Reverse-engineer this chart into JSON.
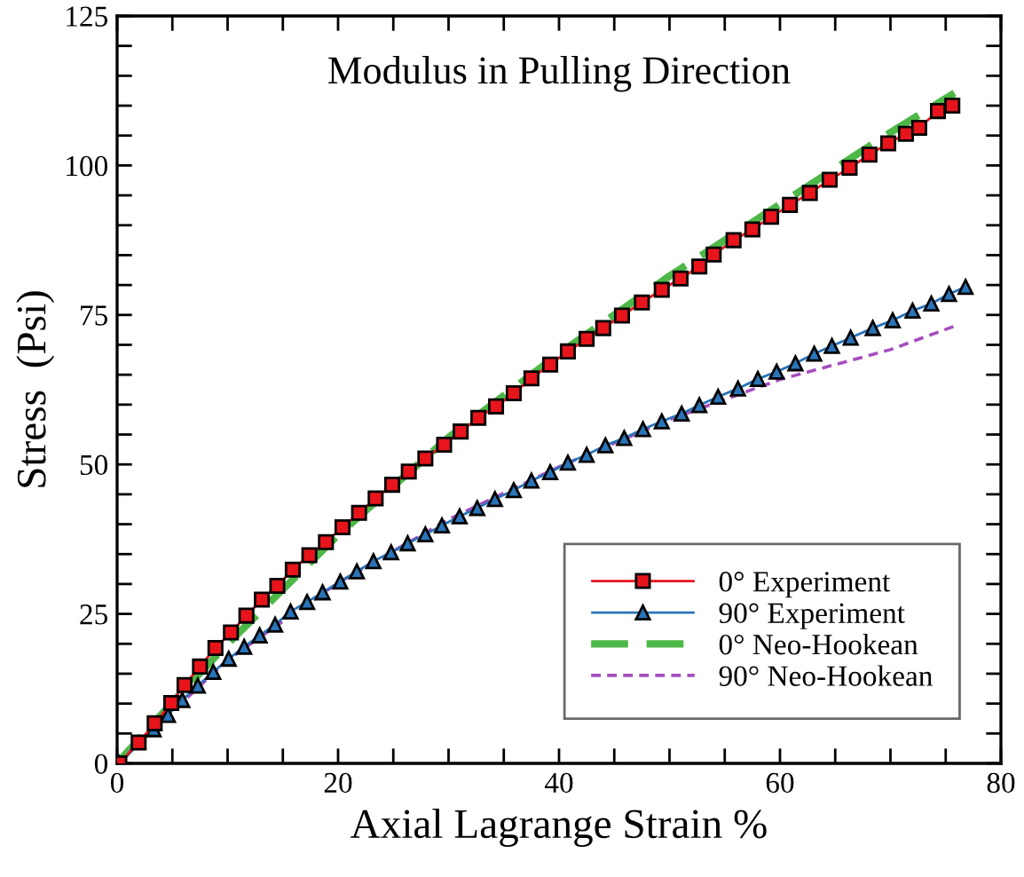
{
  "chart_data": {
    "type": "line",
    "title": "Modulus in Pulling Direction",
    "xlabel": "Axial Lagrange Strain %",
    "ylabel": "Stress  (Psi)",
    "xlim": [
      0,
      80
    ],
    "ylim": [
      0,
      125
    ],
    "xticks": [
      0,
      {
        "value": 5,
        "label": null
      },
      {
        "value": 10,
        "label": null
      },
      {
        "value": 15,
        "label": null
      },
      20,
      {
        "value": 25,
        "label": null
      },
      {
        "value": 30,
        "label": null
      },
      {
        "value": 35,
        "label": null
      },
      40,
      {
        "value": 45,
        "label": null
      },
      {
        "value": 50,
        "label": null
      },
      {
        "value": 55,
        "label": null
      },
      60,
      {
        "value": 65,
        "label": null
      },
      {
        "value": 70,
        "label": null
      },
      {
        "value": 75,
        "label": null
      },
      80
    ],
    "yticks": [
      0,
      {
        "value": 5,
        "label": null
      },
      {
        "value": 10,
        "label": null
      },
      {
        "value": 15,
        "label": null
      },
      {
        "value": 20,
        "label": null
      },
      25,
      {
        "value": 30,
        "label": null
      },
      {
        "value": 35,
        "label": null
      },
      {
        "value": 40,
        "label": null
      },
      {
        "value": 45,
        "label": null
      },
      50,
      {
        "value": 55,
        "label": null
      },
      {
        "value": 60,
        "label": null
      },
      {
        "value": 65,
        "label": null
      },
      {
        "value": 70,
        "label": null
      },
      75,
      {
        "value": 80,
        "label": null
      },
      {
        "value": 85,
        "label": null
      },
      {
        "value": 90,
        "label": null
      },
      {
        "value": 95,
        "label": null
      },
      100,
      {
        "value": 105,
        "label": null
      },
      {
        "value": 110,
        "label": null
      },
      {
        "value": 115,
        "label": null
      },
      {
        "value": 120,
        "label": null
      },
      125
    ],
    "grid": false,
    "legend": "bottom right",
    "series": [
      {
        "name": "0° Experiment",
        "color": "#e8141c",
        "marker": "square",
        "line_style": "solid",
        "x": [
          0.2,
          1.95,
          3.4,
          4.9,
          6.1,
          7.5,
          8.9,
          10.3,
          11.7,
          13.1,
          14.5,
          15.9,
          17.4,
          18.9,
          20.4,
          21.9,
          23.4,
          24.9,
          26.4,
          27.9,
          29.6,
          31.1,
          32.7,
          34.3,
          35.9,
          37.5,
          39.2,
          40.8,
          42.5,
          44.0,
          45.7,
          47.5,
          49.3,
          51.0,
          52.7,
          54.0,
          55.8,
          57.5,
          59.2,
          60.9,
          62.7,
          64.5,
          66.3,
          68.1,
          69.8,
          71.4,
          72.6,
          74.3,
          75.6
        ],
        "values": [
          0,
          3.5,
          6.7,
          10.1,
          13.1,
          16.2,
          19.3,
          21.9,
          24.7,
          27.4,
          29.7,
          32.4,
          34.8,
          37.0,
          39.5,
          41.9,
          44.3,
          46.6,
          48.8,
          51.0,
          53.3,
          55.5,
          57.8,
          59.7,
          61.9,
          64.4,
          66.7,
          68.9,
          71.0,
          72.8,
          74.9,
          77.1,
          79.2,
          81.1,
          83.1,
          85.1,
          87.5,
          89.3,
          91.4,
          93.4,
          95.4,
          97.6,
          99.6,
          101.8,
          103.7,
          105.3,
          106.3,
          109.1,
          110.0
        ]
      },
      {
        "name": "90° Experiment",
        "color": "#2a74b8",
        "marker": "triangle",
        "line_style": "solid",
        "x": [
          0.2,
          3.3,
          4.6,
          5.9,
          7.3,
          8.7,
          10.1,
          11.5,
          12.9,
          14.3,
          15.7,
          17.2,
          18.6,
          20.2,
          21.7,
          23.2,
          24.8,
          26.3,
          27.9,
          29.4,
          31.0,
          32.6,
          34.2,
          35.9,
          37.5,
          39.2,
          40.8,
          42.5,
          44.2,
          45.9,
          47.6,
          49.3,
          51.1,
          52.7,
          54.4,
          56.2,
          58.0,
          59.7,
          61.4,
          63.1,
          64.7,
          66.4,
          68.4,
          70.2,
          72.0,
          73.7,
          75.3,
          76.8
        ],
        "values": [
          0,
          5.7,
          8.1,
          10.6,
          13.0,
          15.3,
          17.5,
          19.5,
          21.4,
          23.2,
          25.4,
          27.0,
          28.6,
          30.4,
          32.1,
          33.8,
          35.3,
          36.8,
          38.3,
          39.8,
          41.3,
          42.7,
          44.2,
          45.7,
          47.3,
          48.7,
          50.3,
          51.6,
          53.2,
          54.4,
          55.9,
          57.2,
          58.5,
          59.9,
          61.3,
          62.7,
          64.3,
          65.5,
          66.9,
          68.5,
          69.8,
          71.2,
          72.8,
          74.1,
          75.7,
          76.9,
          78.5,
          79.7
        ]
      },
      {
        "name": "0° Neo-Hookean",
        "color": "#4db848",
        "marker": "none",
        "line_style": "dashed",
        "x": [
          0,
          5,
          10,
          20,
          30,
          40,
          50,
          60,
          70,
          75.8
        ],
        "values": [
          0,
          10.2,
          20.0,
          38.2,
          54.5,
          68.5,
          81.5,
          93.5,
          105.5,
          112.1
        ]
      },
      {
        "name": "90° Neo-Hookean",
        "color": "#a64dbf",
        "marker": "none",
        "line_style": "dotted",
        "x": [
          0,
          10,
          20,
          30,
          40,
          50,
          60,
          70,
          76.2
        ],
        "values": [
          0,
          17.3,
          30.2,
          40.8,
          49.6,
          57.5,
          64.2,
          69.2,
          73.4
        ]
      }
    ]
  }
}
